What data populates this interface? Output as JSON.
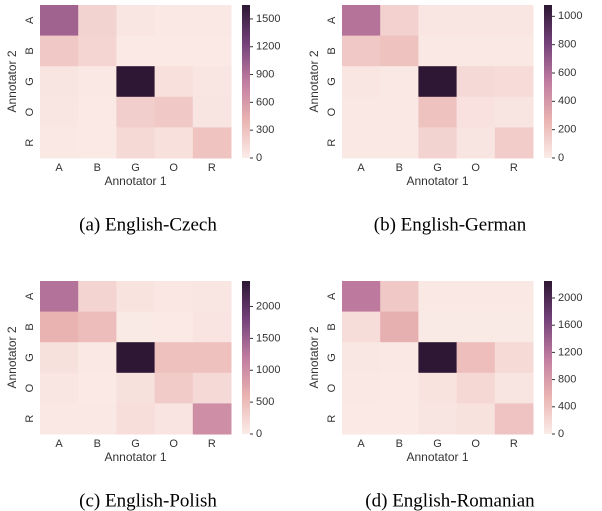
{
  "chart_data": [
    {
      "type": "heatmap",
      "caption": "(a) English-Czech",
      "xlabel": "Annotator 1",
      "ylabel": "Annotator 2",
      "x_categories": [
        "A",
        "B",
        "G",
        "O",
        "R"
      ],
      "y_categories": [
        "A",
        "B",
        "G",
        "O",
        "R"
      ],
      "values": [
        [
          1000,
          180,
          40,
          30,
          30
        ],
        [
          250,
          170,
          20,
          20,
          20
        ],
        [
          60,
          30,
          1650,
          80,
          50
        ],
        [
          40,
          20,
          220,
          250,
          60
        ],
        [
          30,
          20,
          140,
          80,
          300
        ]
      ],
      "zlim": [
        0,
        1650
      ],
      "zticks": [
        0,
        300,
        600,
        900,
        1200,
        1500
      ],
      "colormap": [
        "#fbece8",
        "#e9b3b1",
        "#c07ca0",
        "#74427a",
        "#2d1734"
      ]
    },
    {
      "type": "heatmap",
      "caption": "(b) English-German",
      "xlabel": "Annotator 1",
      "ylabel": "Annotator 2",
      "x_categories": [
        "A",
        "B",
        "G",
        "O",
        "R"
      ],
      "y_categories": [
        "A",
        "B",
        "G",
        "O",
        "R"
      ],
      "values": [
        [
          580,
          130,
          30,
          30,
          30
        ],
        [
          170,
          200,
          20,
          20,
          20
        ],
        [
          30,
          20,
          1080,
          90,
          80
        ],
        [
          20,
          20,
          200,
          50,
          40
        ],
        [
          20,
          20,
          120,
          40,
          150
        ]
      ],
      "zlim": [
        0,
        1080
      ],
      "zticks": [
        0,
        200,
        400,
        600,
        800,
        1000
      ],
      "colormap": [
        "#fbece8",
        "#e9b3b1",
        "#c07ca0",
        "#74427a",
        "#2d1734"
      ]
    },
    {
      "type": "heatmap",
      "caption": "(c) English-Polish",
      "xlabel": "Annotator 1",
      "ylabel": "Annotator 2",
      "x_categories": [
        "A",
        "B",
        "G",
        "O",
        "R"
      ],
      "y_categories": [
        "A",
        "B",
        "G",
        "O",
        "R"
      ],
      "values": [
        [
          1300,
          250,
          100,
          50,
          60
        ],
        [
          600,
          500,
          20,
          30,
          80
        ],
        [
          120,
          40,
          2400,
          450,
          450
        ],
        [
          60,
          30,
          120,
          350,
          200
        ],
        [
          40,
          40,
          150,
          80,
          1000
        ]
      ],
      "zlim": [
        0,
        2400
      ],
      "zticks": [
        0,
        500,
        1000,
        1500,
        2000
      ],
      "colormap": [
        "#fbece8",
        "#e9b3b1",
        "#c07ca0",
        "#74427a",
        "#2d1734"
      ]
    },
    {
      "type": "heatmap",
      "caption": "(d) English-Romanian",
      "xlabel": "Annotator 1",
      "ylabel": "Annotator 2",
      "x_categories": [
        "A",
        "B",
        "G",
        "O",
        "R"
      ],
      "y_categories": [
        "A",
        "B",
        "G",
        "O",
        "R"
      ],
      "values": [
        [
          1150,
          350,
          40,
          40,
          40
        ],
        [
          150,
          600,
          20,
          20,
          20
        ],
        [
          50,
          40,
          2250,
          450,
          180
        ],
        [
          40,
          30,
          90,
          200,
          80
        ],
        [
          30,
          30,
          80,
          100,
          400
        ]
      ],
      "zlim": [
        0,
        2250
      ],
      "zticks": [
        0,
        400,
        800,
        1200,
        1600,
        2000
      ],
      "colormap": [
        "#fbece8",
        "#e9b3b1",
        "#c07ca0",
        "#74427a",
        "#2d1734"
      ]
    }
  ]
}
